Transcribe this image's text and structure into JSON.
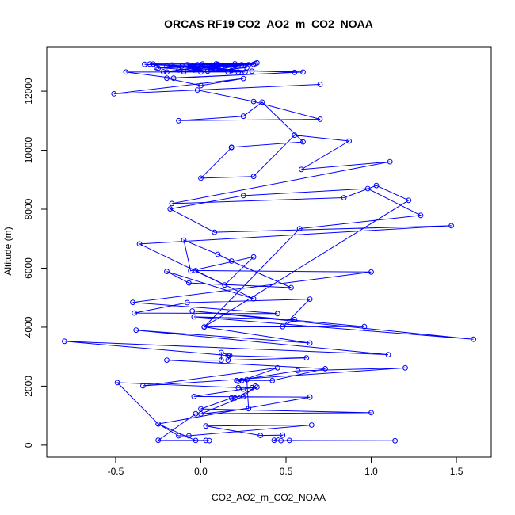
{
  "chart_data": {
    "type": "line",
    "title": "ORCAS RF19 CO2_AO2_m_CO2_NOAA",
    "xlabel": "CO2_AO2_m_CO2_NOAA",
    "ylabel": "Altitude (m)",
    "xlim": [
      -0.8,
      1.6
    ],
    "ylim": [
      150,
      12950
    ],
    "xticks": [
      -0.5,
      0.0,
      0.5,
      1.0,
      1.5
    ],
    "xtick_labels": [
      "-0.5",
      "0.0",
      "0.5",
      "1.0",
      "1.5"
    ],
    "yticks": [
      0,
      2000,
      4000,
      6000,
      8000,
      10000,
      12000
    ],
    "ytick_labels": [
      "0",
      "2000",
      "4000",
      "6000",
      "8000",
      "10000",
      "12000"
    ],
    "grid": false,
    "series": [
      {
        "color": "#0000ff",
        "marker": "open-circle",
        "points": [
          [
            1.14,
            150
          ],
          [
            0.52,
            160
          ],
          [
            0.47,
            155
          ],
          [
            0.43,
            165
          ],
          [
            0.48,
            340
          ],
          [
            0.35,
            330
          ],
          [
            0.03,
            650
          ],
          [
            0.65,
            680
          ],
          [
            -0.07,
            320
          ],
          [
            -0.13,
            320
          ],
          [
            -0.25,
            720
          ],
          [
            -0.03,
            160
          ],
          [
            0.05,
            155
          ],
          [
            0.03,
            160
          ],
          [
            -0.25,
            165
          ],
          [
            -0.03,
            1065
          ],
          [
            1.0,
            1100
          ],
          [
            0.0,
            1230
          ],
          [
            0.18,
            1600
          ],
          [
            0.2,
            1600
          ],
          [
            0.33,
            1970
          ],
          [
            0.25,
            1900
          ],
          [
            -0.04,
            1650
          ],
          [
            0.64,
            1630
          ],
          [
            -0.25,
            720
          ],
          [
            -0.49,
            2120
          ],
          [
            0.22,
            1950
          ],
          [
            0.3,
            1950
          ],
          [
            0.32,
            2000
          ],
          [
            0.25,
            1650
          ],
          [
            0.0,
            1060
          ],
          [
            0.28,
            1240
          ],
          [
            0.27,
            2220
          ],
          [
            0.22,
            2160
          ],
          [
            0.24,
            2190
          ],
          [
            0.45,
            2620
          ],
          [
            -0.34,
            2010
          ],
          [
            1.2,
            2620
          ],
          [
            0.57,
            2520
          ],
          [
            0.21,
            2190
          ],
          [
            0.42,
            2190
          ],
          [
            0.73,
            2590
          ],
          [
            -0.2,
            2880
          ],
          [
            0.12,
            2880
          ],
          [
            0.12,
            3140
          ],
          [
            0.17,
            3040
          ],
          [
            0.16,
            2880
          ],
          [
            0.62,
            2960
          ],
          [
            0.16,
            3040
          ],
          [
            -0.8,
            3520
          ],
          [
            1.1,
            3070
          ],
          [
            -0.38,
            3900
          ],
          [
            0.64,
            3460
          ],
          [
            0.02,
            4010
          ],
          [
            0.96,
            4020
          ],
          [
            -0.05,
            4550
          ],
          [
            1.6,
            3590
          ],
          [
            -0.04,
            4350
          ],
          [
            0.55,
            4260
          ],
          [
            0.48,
            4020
          ],
          [
            0.64,
            4950
          ],
          [
            -0.08,
            4830
          ],
          [
            -0.39,
            4480
          ],
          [
            0.45,
            4460
          ],
          [
            -0.4,
            4840
          ],
          [
            1.0,
            5870
          ],
          [
            -0.03,
            5920
          ],
          [
            0.31,
            4960
          ],
          [
            -0.2,
            5890
          ],
          [
            -0.07,
            5500
          ],
          [
            0.53,
            5340
          ],
          [
            0.18,
            6240
          ],
          [
            0.1,
            6470
          ],
          [
            -0.1,
            6950
          ],
          [
            -0.06,
            5910
          ],
          [
            0.31,
            6380
          ],
          [
            0.14,
            5430
          ],
          [
            -0.36,
            6820
          ],
          [
            1.47,
            7440
          ],
          [
            0.08,
            7220
          ],
          [
            -0.18,
            8010
          ],
          [
            0.25,
            8460
          ],
          [
            0.98,
            8700
          ],
          [
            1.29,
            7790
          ],
          [
            0.58,
            7340
          ],
          [
            0.02,
            4010
          ],
          [
            1.22,
            8300
          ],
          [
            1.03,
            8800
          ],
          [
            0.84,
            8390
          ],
          [
            -0.17,
            8190
          ],
          [
            1.11,
            9610
          ],
          [
            0.59,
            9350
          ],
          [
            0.87,
            10310
          ],
          [
            0.55,
            10510
          ],
          [
            0.31,
            9110
          ],
          [
            0.0,
            9050
          ],
          [
            0.18,
            10090
          ],
          [
            0.18,
            10100
          ],
          [
            0.6,
            10280
          ],
          [
            0.36,
            11630
          ],
          [
            0.25,
            11150
          ],
          [
            -0.13,
            11000
          ],
          [
            0.7,
            11050
          ],
          [
            0.31,
            11650
          ],
          [
            -0.02,
            12040
          ],
          [
            0.7,
            12230
          ],
          [
            -0.51,
            11910
          ],
          [
            0.25,
            12430
          ],
          [
            0.0,
            12190
          ],
          [
            -0.2,
            12440
          ],
          [
            0.6,
            12650
          ],
          [
            0.06,
            12730
          ],
          [
            0.55,
            12640
          ],
          [
            -0.16,
            12440
          ],
          [
            -0.44,
            12650
          ],
          [
            -0.2,
            12650
          ],
          [
            0.22,
            12650
          ],
          [
            -0.28,
            12920
          ],
          [
            0.32,
            12940
          ],
          [
            -0.25,
            12780
          ],
          [
            0.28,
            12900
          ],
          [
            -0.3,
            12920
          ],
          [
            0.31,
            12910
          ],
          [
            0.07,
            12800
          ],
          [
            -0.02,
            12900
          ],
          [
            0.14,
            12740
          ],
          [
            -0.11,
            12850
          ],
          [
            0.2,
            12860
          ],
          [
            0.01,
            12920
          ],
          [
            0.24,
            12900
          ],
          [
            -0.04,
            12720
          ],
          [
            0.16,
            12650
          ],
          [
            -0.06,
            12880
          ],
          [
            0.1,
            12910
          ],
          [
            -0.13,
            12720
          ],
          [
            0.05,
            12870
          ],
          [
            -0.26,
            12800
          ],
          [
            0.04,
            12680
          ],
          [
            -0.17,
            12890
          ],
          [
            0.3,
            12680
          ],
          [
            -0.03,
            12760
          ],
          [
            0.09,
            12930
          ],
          [
            -0.1,
            12660
          ],
          [
            0.26,
            12650
          ],
          [
            -0.2,
            12860
          ],
          [
            0.12,
            12800
          ],
          [
            -0.33,
            12910
          ],
          [
            0.27,
            12800
          ],
          [
            0.0,
            12650
          ],
          [
            0.33,
            12960
          ],
          [
            -0.08,
            12900
          ],
          [
            0.18,
            12700
          ],
          [
            -0.22,
            12660
          ],
          [
            0.2,
            12930
          ],
          [
            0.0,
            12830
          ]
        ]
      }
    ]
  }
}
